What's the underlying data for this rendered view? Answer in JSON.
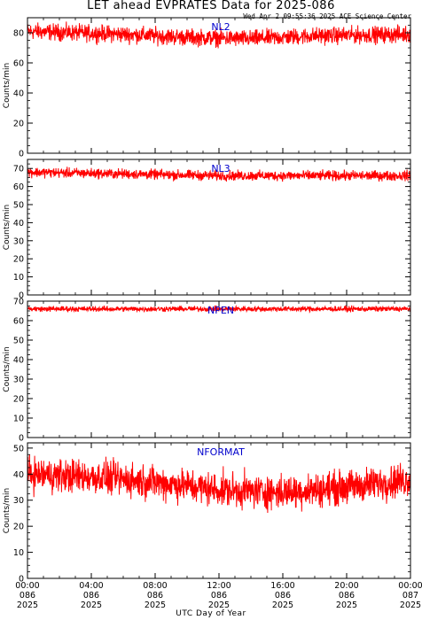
{
  "title": "LET ahead EVPRATES Data for 2025-086",
  "timestamp": "Wed Apr  2 09:55:36 2025 ACE Science Center",
  "xlabel": "UTC Day of Year",
  "colors": {
    "line": "#ff0000",
    "panel_label": "#0000cc",
    "axes": "#000000"
  },
  "chart_data": [
    {
      "type": "line",
      "panel_label": "NL2",
      "ylabel": "Counts/min",
      "ylim": [
        0,
        90
      ],
      "yticks": [
        0,
        20,
        40,
        60,
        80
      ],
      "mean": 79,
      "amplitude": 6,
      "note_trend": [
        [
          0,
          81
        ],
        [
          6,
          79
        ],
        [
          10,
          77
        ],
        [
          14,
          76
        ],
        [
          18,
          78
        ],
        [
          24,
          79
        ]
      ]
    },
    {
      "type": "line",
      "panel_label": "NL3",
      "ylabel": "Counts/min",
      "ylim": [
        0,
        75
      ],
      "yticks": [
        0,
        10,
        20,
        30,
        40,
        50,
        60,
        70
      ],
      "mean": 66,
      "amplitude": 3,
      "note_trend": [
        [
          0,
          68
        ],
        [
          6,
          67
        ],
        [
          12,
          66
        ],
        [
          18,
          66
        ],
        [
          24,
          66
        ]
      ]
    },
    {
      "type": "line",
      "panel_label": "NPEN",
      "ylabel": "Counts/min",
      "ylim": [
        0,
        70
      ],
      "yticks": [
        0,
        10,
        20,
        30,
        40,
        50,
        60,
        70
      ],
      "mean": 66,
      "amplitude": 1.5,
      "note_trend": [
        [
          0,
          66
        ],
        [
          12,
          66
        ],
        [
          24,
          66
        ]
      ]
    },
    {
      "type": "line",
      "panel_label": "NFORMAT",
      "ylabel": "Counts/min",
      "ylim": [
        0,
        52
      ],
      "yticks": [
        0,
        10,
        20,
        30,
        40,
        50
      ],
      "mean": 37,
      "amplitude": 7,
      "note_trend": [
        [
          0,
          40
        ],
        [
          4,
          39
        ],
        [
          8,
          37
        ],
        [
          12,
          34
        ],
        [
          16,
          33
        ],
        [
          20,
          35
        ],
        [
          24,
          38
        ]
      ]
    }
  ],
  "xaxis": {
    "range_hours": [
      0,
      24
    ],
    "ticks": [
      {
        "hour": 0,
        "time": "00:00",
        "doy": "086",
        "year": "2025"
      },
      {
        "hour": 4,
        "time": "04:00",
        "doy": "086",
        "year": "2025"
      },
      {
        "hour": 8,
        "time": "08:00",
        "doy": "086",
        "year": "2025"
      },
      {
        "hour": 12,
        "time": "12:00",
        "doy": "086",
        "year": "2025"
      },
      {
        "hour": 16,
        "time": "16:00",
        "doy": "086",
        "year": "2025"
      },
      {
        "hour": 20,
        "time": "20:00",
        "doy": "086",
        "year": "2025"
      },
      {
        "hour": 24,
        "time": "00:00",
        "doy": "087",
        "year": "2025"
      }
    ]
  }
}
